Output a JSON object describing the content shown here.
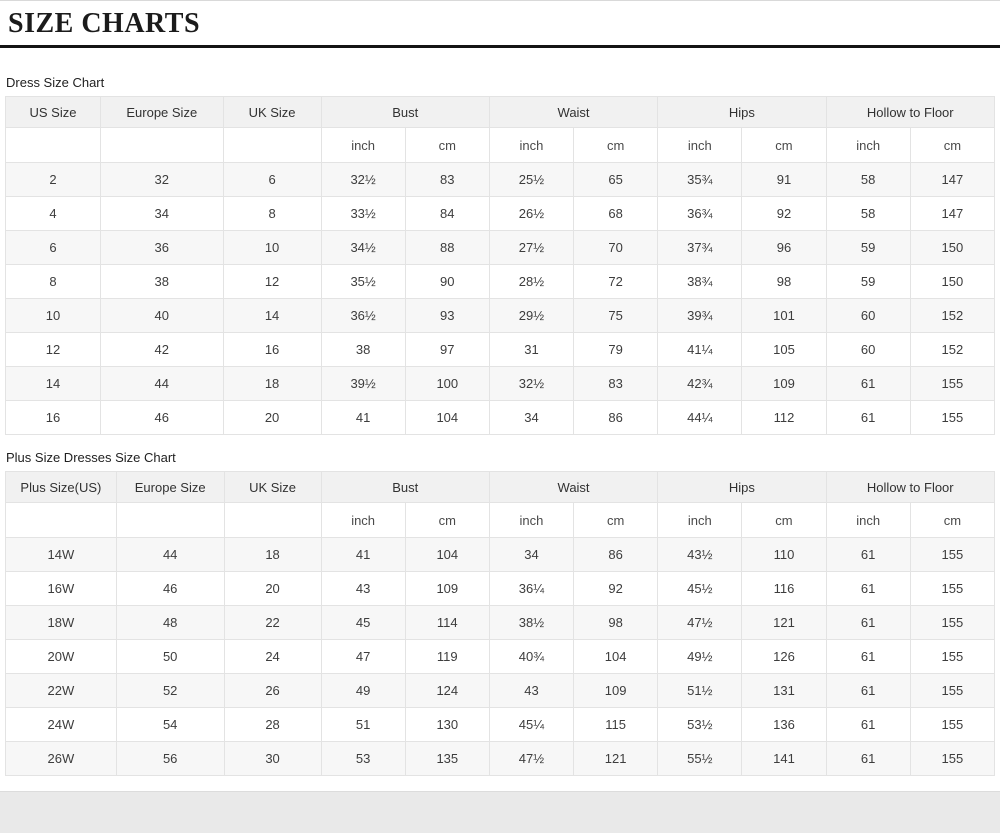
{
  "page": {
    "title": "SIZE CHARTS"
  },
  "tables": [
    {
      "caption": "Dress Size Chart",
      "col_widths": [
        "9.6%",
        "12.4%",
        "9.9%",
        "8.51%",
        "8.51%",
        "8.51%",
        "8.51%",
        "8.51%",
        "8.51%",
        "8.51%",
        "8.51%"
      ],
      "columns": [
        {
          "label": "US Size"
        },
        {
          "label": "Europe Size"
        },
        {
          "label": "UK Size"
        },
        {
          "label": "Bust",
          "units": [
            "inch",
            "cm"
          ]
        },
        {
          "label": "Waist",
          "units": [
            "inch",
            "cm"
          ]
        },
        {
          "label": "Hips",
          "units": [
            "inch",
            "cm"
          ]
        },
        {
          "label": "Hollow to Floor",
          "units": [
            "inch",
            "cm"
          ]
        }
      ],
      "rows": [
        [
          "2",
          "32",
          "6",
          "32½",
          "83",
          "25½",
          "65",
          "35¾",
          "91",
          "58",
          "147"
        ],
        [
          "4",
          "34",
          "8",
          "33½",
          "84",
          "26½",
          "68",
          "36¾",
          "92",
          "58",
          "147"
        ],
        [
          "6",
          "36",
          "10",
          "34½",
          "88",
          "27½",
          "70",
          "37¾",
          "96",
          "59",
          "150"
        ],
        [
          "8",
          "38",
          "12",
          "35½",
          "90",
          "28½",
          "72",
          "38¾",
          "98",
          "59",
          "150"
        ],
        [
          "10",
          "40",
          "14",
          "36½",
          "93",
          "29½",
          "75",
          "39¾",
          "101",
          "60",
          "152"
        ],
        [
          "12",
          "42",
          "16",
          "38",
          "97",
          "31",
          "79",
          "41¼",
          "105",
          "60",
          "152"
        ],
        [
          "14",
          "44",
          "18",
          "39½",
          "100",
          "32½",
          "83",
          "42¾",
          "109",
          "61",
          "155"
        ],
        [
          "16",
          "46",
          "20",
          "41",
          "104",
          "34",
          "86",
          "44¼",
          "112",
          "61",
          "155"
        ]
      ]
    },
    {
      "caption": "Plus Size Dresses Size Chart",
      "col_widths": [
        "11.2%",
        "10.9%",
        "9.8%",
        "8.51%",
        "8.51%",
        "8.51%",
        "8.51%",
        "8.51%",
        "8.51%",
        "8.51%",
        "8.51%"
      ],
      "columns": [
        {
          "label": "Plus Size(US)"
        },
        {
          "label": "Europe Size"
        },
        {
          "label": "UK Size"
        },
        {
          "label": "Bust",
          "units": [
            "inch",
            "cm"
          ]
        },
        {
          "label": "Waist",
          "units": [
            "inch",
            "cm"
          ]
        },
        {
          "label": "Hips",
          "units": [
            "inch",
            "cm"
          ]
        },
        {
          "label": "Hollow to Floor",
          "units": [
            "inch",
            "cm"
          ]
        }
      ],
      "rows": [
        [
          "14W",
          "44",
          "18",
          "41",
          "104",
          "34",
          "86",
          "43½",
          "110",
          "61",
          "155"
        ],
        [
          "16W",
          "46",
          "20",
          "43",
          "109",
          "36¼",
          "92",
          "45½",
          "116",
          "61",
          "155"
        ],
        [
          "18W",
          "48",
          "22",
          "45",
          "114",
          "38½",
          "98",
          "47½",
          "121",
          "61",
          "155"
        ],
        [
          "20W",
          "50",
          "24",
          "47",
          "119",
          "40¾",
          "104",
          "49½",
          "126",
          "61",
          "155"
        ],
        [
          "22W",
          "52",
          "26",
          "49",
          "124",
          "43",
          "109",
          "51½",
          "131",
          "61",
          "155"
        ],
        [
          "24W",
          "54",
          "28",
          "51",
          "130",
          "45¼",
          "115",
          "53½",
          "136",
          "61",
          "155"
        ],
        [
          "26W",
          "56",
          "30",
          "53",
          "135",
          "47½",
          "121",
          "55½",
          "141",
          "61",
          "155"
        ]
      ]
    }
  ],
  "colors": {
    "header_bg": "#f1f1f1",
    "stripe_bg": "#f7f7f7",
    "border": "#e3e3e3",
    "title_rule": "#141414",
    "bottom_band": "#e9e9e9"
  }
}
